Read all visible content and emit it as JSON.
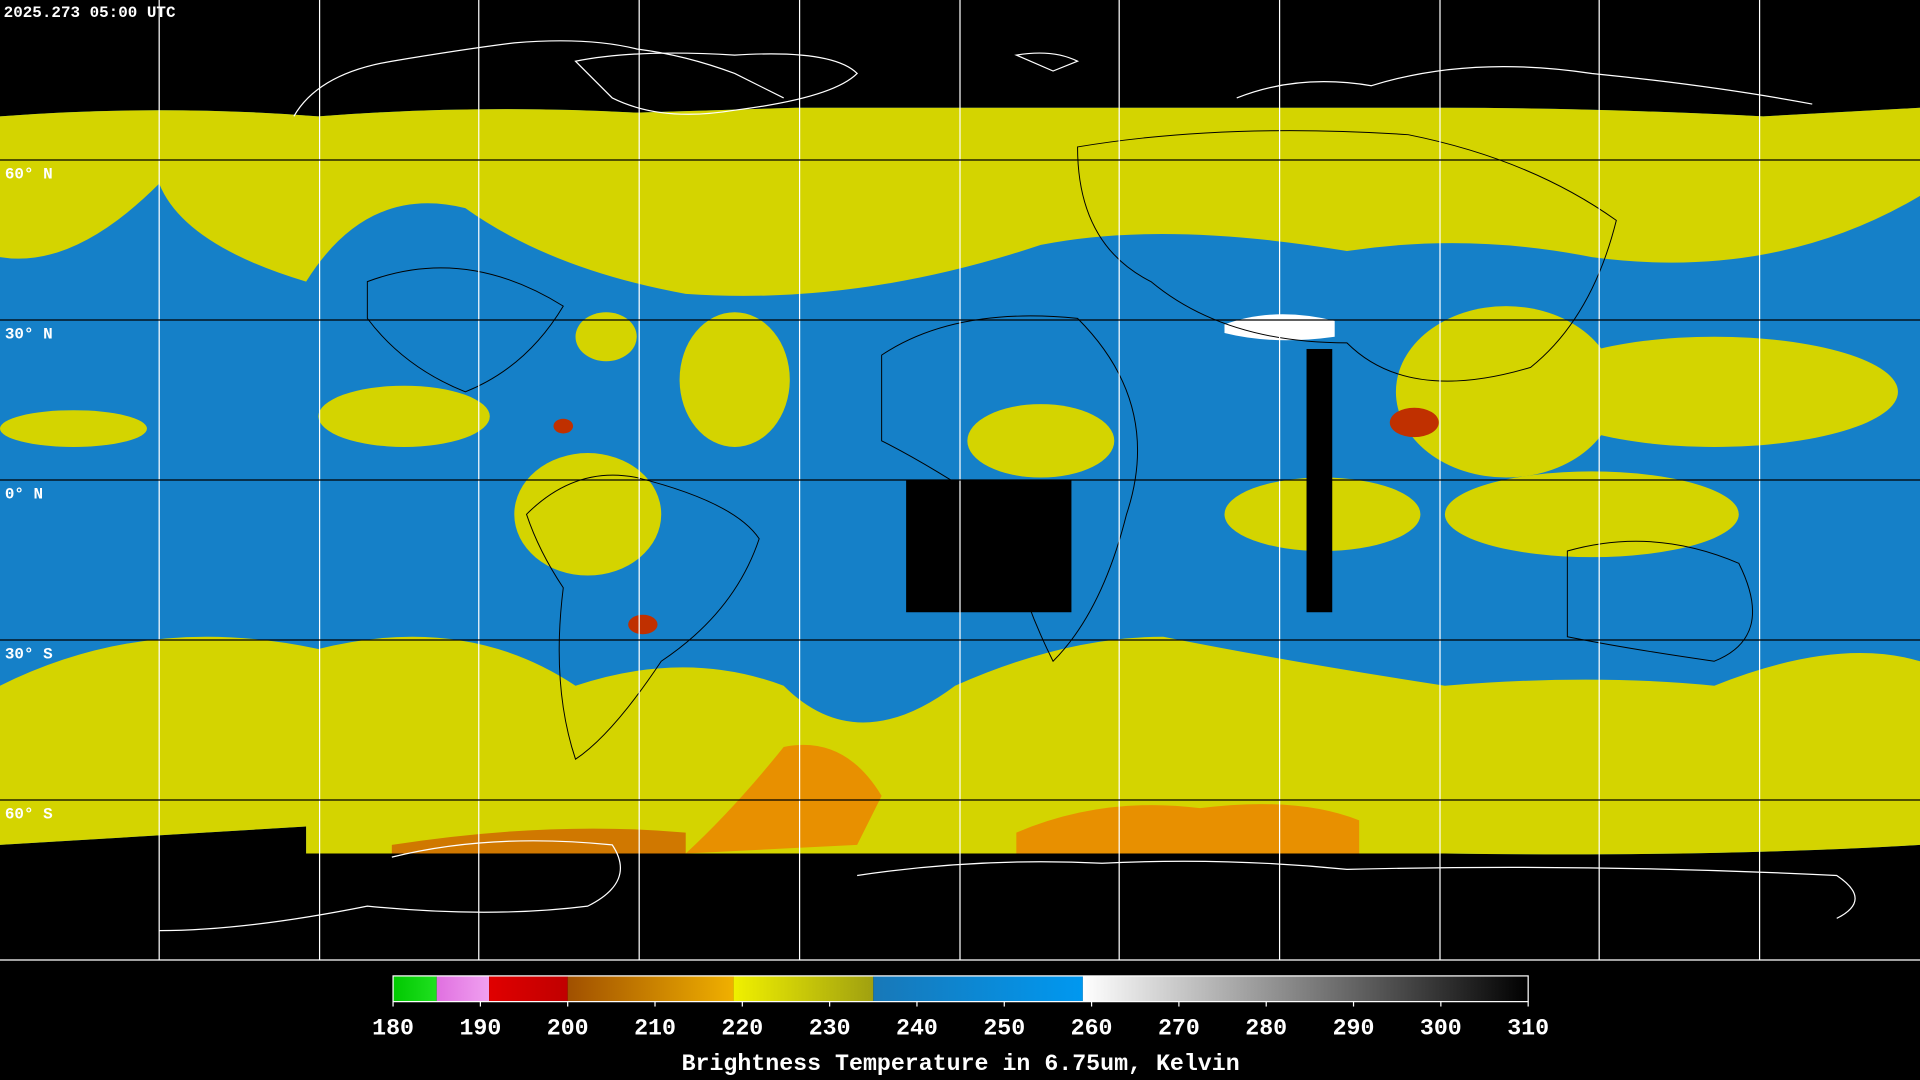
{
  "timestamp": "2025.273 05:00 UTC",
  "lat_labels": [
    {
      "value": 60,
      "label": "60° N"
    },
    {
      "value": 30,
      "label": "30° N"
    },
    {
      "value": 0,
      "label": "0° N"
    },
    {
      "value": -30,
      "label": "30° S"
    },
    {
      "value": -60,
      "label": "60° S"
    }
  ],
  "colorbar": {
    "title": "Brightness Temperature in 6.75um, Kelvin",
    "range": [
      180,
      310
    ],
    "ticks": [
      180,
      190,
      200,
      210,
      220,
      230,
      240,
      250,
      260,
      270,
      280,
      290,
      300,
      310
    ],
    "segments": [
      {
        "from": 180,
        "to": 185,
        "color_from": "#00c800",
        "color_to": "#20e020"
      },
      {
        "from": 185,
        "to": 191,
        "color_from": "#e070e0",
        "color_to": "#f0a0f0"
      },
      {
        "from": 191,
        "to": 200,
        "color_from": "#e00000",
        "color_to": "#c00000"
      },
      {
        "from": 200,
        "to": 219,
        "color_from": "#a05000",
        "color_to": "#f0b000"
      },
      {
        "from": 219,
        "to": 235,
        "color_from": "#f0f000",
        "color_to": "#a0a010"
      },
      {
        "from": 235,
        "to": 259,
        "color_from": "#1878b8",
        "color_to": "#0098f0"
      },
      {
        "from": 259,
        "to": 310,
        "color_from": "#ffffff",
        "color_to": "#000000"
      }
    ]
  }
}
